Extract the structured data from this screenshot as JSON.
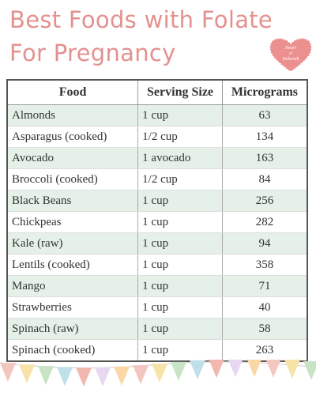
{
  "header": {
    "title_line1": "Best Foods with Folate",
    "title_line2": "For Pregnancy",
    "logo": [
      "Heart",
      "of",
      "Deborah"
    ]
  },
  "table": {
    "columns": [
      "Food",
      "Serving Size",
      "Micrograms"
    ],
    "rows": [
      [
        "Almonds",
        "1 cup",
        63
      ],
      [
        "Asparagus (cooked)",
        "1/2 cup",
        134
      ],
      [
        "Avocado",
        "1 avocado",
        163
      ],
      [
        "Broccoli (cooked)",
        "1/2 cup",
        84
      ],
      [
        "Black Beans",
        "1 cup",
        256
      ],
      [
        "Chickpeas",
        "1 cup",
        282
      ],
      [
        "Kale (raw)",
        "1 cup",
        94
      ],
      [
        "Lentils (cooked)",
        "1 cup",
        358
      ],
      [
        "Mango",
        "1 cup",
        71
      ],
      [
        "Strawberries",
        "1 cup",
        40
      ],
      [
        "Spinach (raw)",
        "1 cup",
        58
      ],
      [
        "Spinach (cooked)",
        "1 cup",
        263
      ]
    ]
  }
}
